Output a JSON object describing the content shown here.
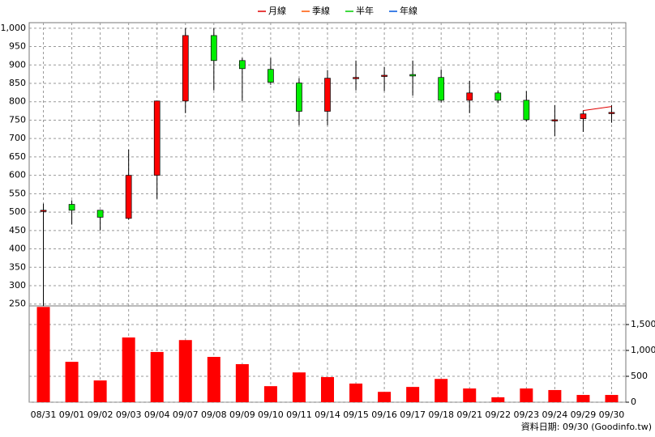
{
  "chart_data": [
    {
      "type": "candlestick",
      "categories": [
        "08/31",
        "09/01",
        "09/02",
        "09/03",
        "09/04",
        "09/07",
        "09/08",
        "09/09",
        "09/10",
        "09/11",
        "09/14",
        "09/15",
        "09/16",
        "09/17",
        "09/18",
        "09/21",
        "09/22",
        "09/23",
        "09/24",
        "09/29",
        "09/30"
      ],
      "open": [
        505,
        521,
        505,
        483,
        600,
        802,
        980,
        912,
        888,
        851,
        774,
        866,
        872,
        874,
        866,
        804,
        824,
        804,
        751,
        754,
        771
      ],
      "high": [
        523,
        532,
        505,
        670,
        802,
        1000,
        1000,
        919,
        919,
        864,
        886,
        912,
        894,
        912,
        888,
        857,
        831,
        829,
        791,
        776,
        791
      ],
      "low": [
        245,
        466,
        450,
        479,
        536,
        769,
        831,
        802,
        846,
        736,
        736,
        831,
        829,
        817,
        798,
        769,
        796,
        747,
        707,
        718,
        743
      ],
      "close": [
        505,
        505,
        486,
        600,
        802,
        980,
        912,
        890,
        853,
        774,
        864,
        866,
        872,
        870,
        804,
        824,
        804,
        751,
        751,
        767,
        771
      ],
      "up_color": "#ff0000",
      "down_color": "#00ee00",
      "series": [
        {
          "name": "月線",
          "color": "#e00000",
          "values": [
            null,
            null,
            null,
            null,
            null,
            null,
            null,
            null,
            null,
            null,
            null,
            null,
            null,
            null,
            null,
            null,
            null,
            null,
            null,
            776,
            787
          ]
        },
        {
          "name": "季線",
          "color": "#ff5500",
          "values": [
            null,
            null,
            null,
            null,
            null,
            null,
            null,
            null,
            null,
            null,
            null,
            null,
            null,
            null,
            null,
            null,
            null,
            null,
            null,
            null,
            null
          ]
        },
        {
          "name": "半年",
          "color": "#00cc00",
          "values": [
            null,
            null,
            null,
            null,
            null,
            null,
            null,
            null,
            null,
            null,
            null,
            null,
            null,
            null,
            null,
            null,
            null,
            null,
            null,
            null,
            null
          ]
        },
        {
          "name": "年線",
          "color": "#0055dd",
          "values": [
            null,
            null,
            null,
            null,
            null,
            null,
            null,
            null,
            null,
            null,
            null,
            null,
            null,
            null,
            null,
            null,
            null,
            null,
            null,
            null,
            null
          ]
        }
      ],
      "ylim": [
        245,
        1015
      ],
      "yticks": [
        250,
        300,
        350,
        400,
        450,
        500,
        550,
        600,
        650,
        700,
        750,
        800,
        850,
        900,
        950,
        {
          "value": 1000,
          "label": "1,000"
        }
      ],
      "grid": true
    },
    {
      "type": "bar",
      "values": [
        1840,
        780,
        420,
        1250,
        970,
        1200,
        875,
        735,
        310,
        575,
        485,
        360,
        200,
        295,
        450,
        265,
        95,
        265,
        235,
        140,
        140
      ],
      "color": "#ff0000",
      "y2lim": [
        0,
        1860
      ],
      "y2ticks": [
        0,
        500,
        {
          "value": 1000,
          "label": "1,000"
        },
        {
          "value": 1500,
          "label": "1,500"
        }
      ],
      "grid": true
    }
  ],
  "footer": "資料日期: 09/30  (Goodinfo.tw)"
}
